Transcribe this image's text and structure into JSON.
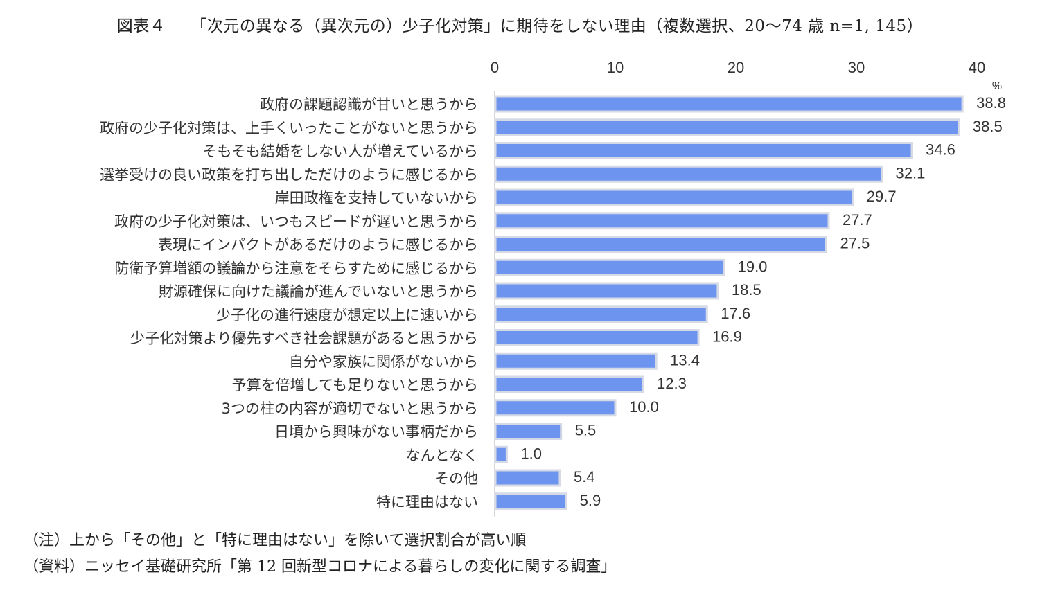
{
  "figure": {
    "number": "図表４",
    "title": "「次元の異なる（異次元の）少子化対策」に期待をしない理由（複数選択、20～74 歳 n=1, 145）"
  },
  "chart_data": {
    "type": "bar",
    "orientation": "horizontal",
    "unit": "%",
    "xlim": [
      0,
      40
    ],
    "ticks": [
      0,
      10,
      20,
      30,
      40
    ],
    "axis_position": "top",
    "bar_color": "#6d95ef",
    "bar_border_color": "#d6d9e6",
    "categories": [
      "政府の課題認識が甘いと思うから",
      "政府の少子化対策は、上手くいったことがないと思うから",
      "そもそも結婚をしない人が増えているから",
      "選挙受けの良い政策を打ち出しただけのように感じるから",
      "岸田政権を支持していないから",
      "政府の少子化対策は、いつもスピードが遅いと思うから",
      "表現にインパクトがあるだけのように感じるから",
      "防衛予算増額の議論から注意をそらすために感じるから",
      "財源確保に向けた議論が進んでいないと思うから",
      "少子化の進行速度が想定以上に速いから",
      "少子化対策より優先すべき社会課題があると思うから",
      "自分や家族に関係がないから",
      "予算を倍増しても足りないと思うから",
      "3つの柱の内容が適切でないと思うから",
      "日頃から興味がない事柄だから",
      "なんとなく",
      "その他",
      "特に理由はない"
    ],
    "values": [
      38.8,
      38.5,
      34.6,
      32.1,
      29.7,
      27.7,
      27.5,
      19.0,
      18.5,
      17.6,
      16.9,
      13.4,
      12.3,
      10.0,
      5.5,
      1.0,
      5.4,
      5.9
    ],
    "value_labels": [
      "38.8",
      "38.5",
      "34.6",
      "32.1",
      "29.7",
      "27.7",
      "27.5",
      "19.0",
      "18.5",
      "17.6",
      "16.9",
      "13.4",
      "12.3",
      "10.0",
      "5.5",
      "1.0",
      "5.4",
      "5.9"
    ]
  },
  "notes": {
    "note": "（注）上から「その他」と「特に理由はない」を除いて選択割合が高い順",
    "source": "（資料）ニッセイ基礎研究所「第 12 回新型コロナによる暮らしの変化に関する調査」"
  }
}
